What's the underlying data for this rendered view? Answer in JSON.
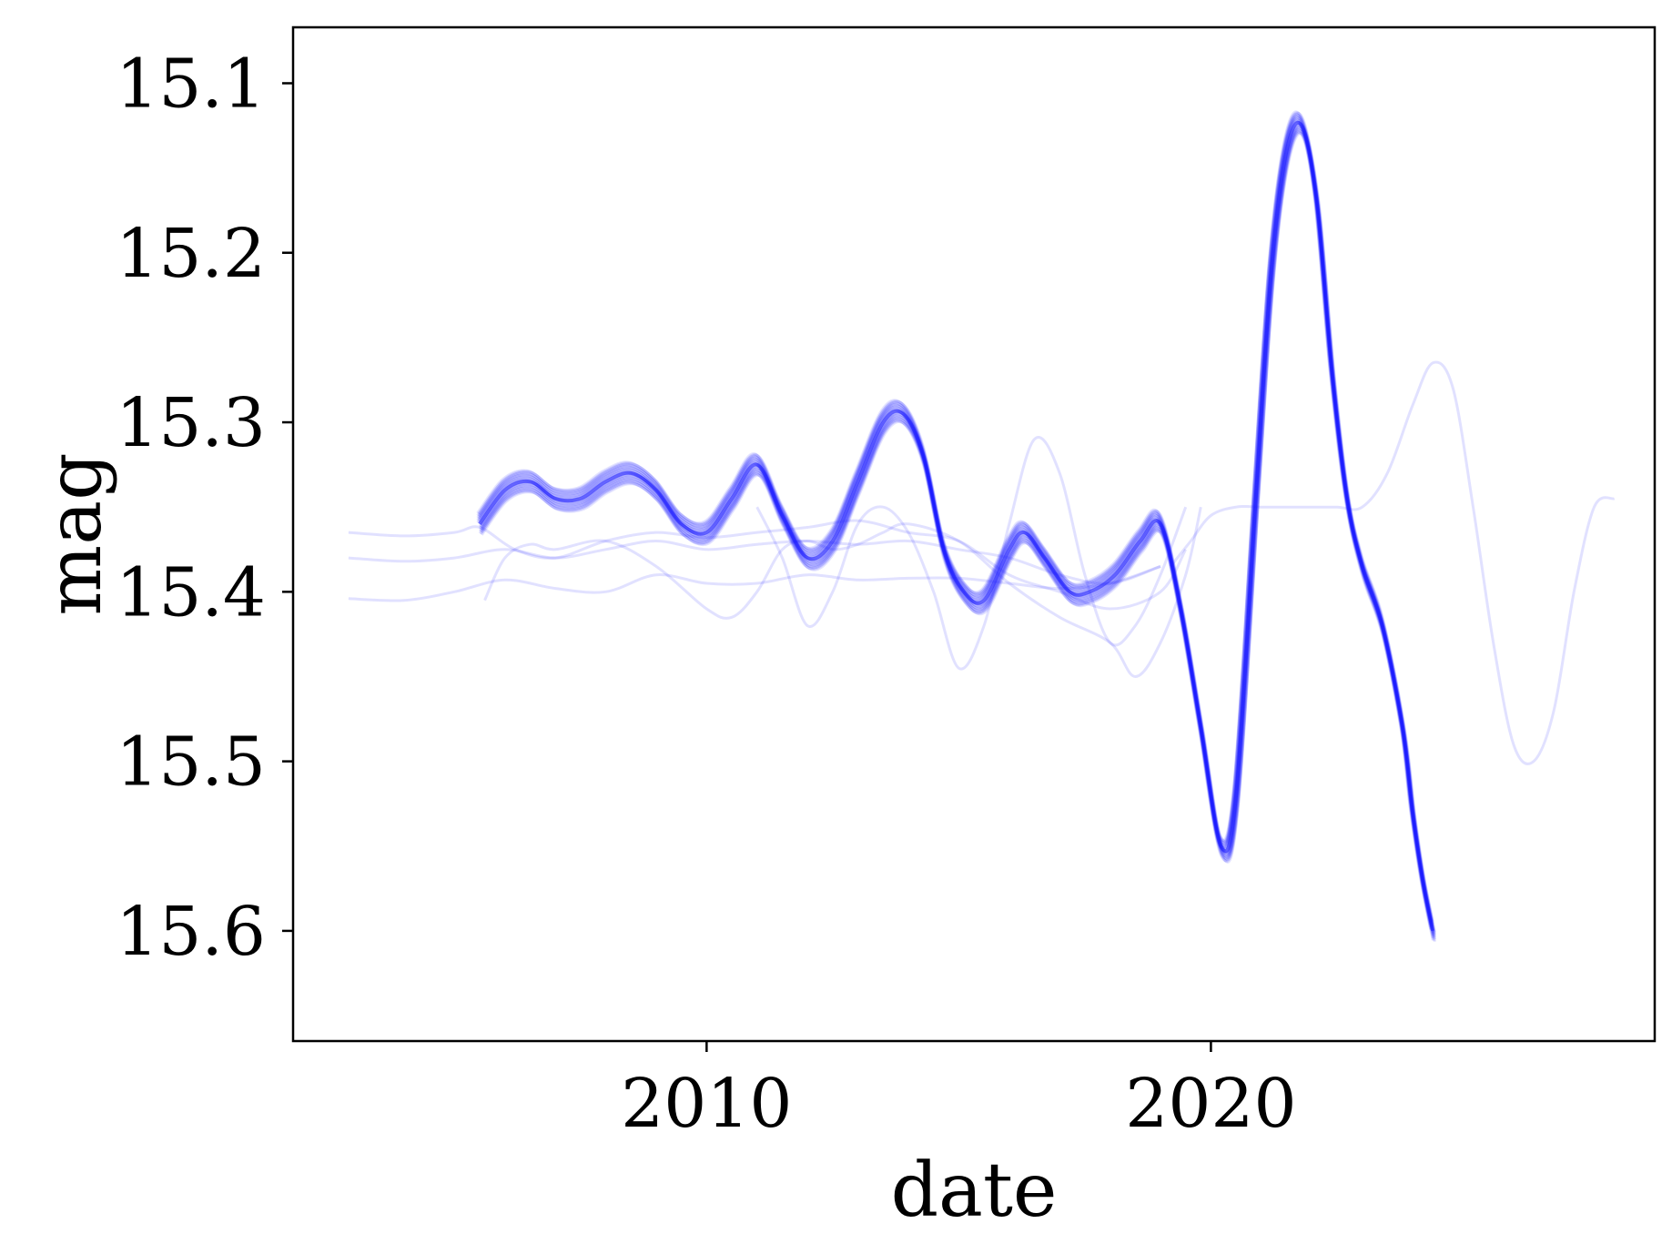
{
  "chart_data": {
    "type": "line",
    "title": "",
    "xlabel": "date",
    "ylabel": "mag",
    "xlim": [
      2001.8,
      2028.8
    ],
    "ylim": [
      15.665,
      15.067
    ],
    "y_inverted": true,
    "grid": false,
    "legend": "none",
    "line_color": "#1a1aff",
    "xticks": [
      {
        "value": 2010,
        "label": "2010"
      },
      {
        "value": 2020,
        "label": "2020"
      }
    ],
    "yticks": [
      {
        "value": 15.1,
        "label": "15.1"
      },
      {
        "value": 15.2,
        "label": "15.2"
      },
      {
        "value": 15.3,
        "label": "15.3"
      },
      {
        "value": 15.4,
        "label": "15.4"
      },
      {
        "value": 15.5,
        "label": "15.5"
      },
      {
        "value": 15.6,
        "label": "15.6"
      }
    ],
    "main_curve": {
      "x": [
        2005.5,
        2006.0,
        2006.5,
        2007.0,
        2007.5,
        2008.0,
        2008.5,
        2009.0,
        2009.5,
        2010.0,
        2010.5,
        2011.0,
        2011.5,
        2012.0,
        2012.5,
        2013.0,
        2013.5,
        2013.9,
        2014.3,
        2014.7,
        2015.1,
        2015.5,
        2016.0,
        2016.3,
        2016.7,
        2017.2,
        2017.6,
        2018.1,
        2018.6,
        2019.0,
        2019.4,
        2019.8,
        2020.2,
        2020.5,
        2020.9,
        2021.2,
        2021.5,
        2021.8,
        2022.1,
        2022.4,
        2022.7,
        2023.0,
        2023.4,
        2023.8,
        2024.0,
        2024.2,
        2024.4
      ],
      "y": [
        15.36,
        15.34,
        15.335,
        15.345,
        15.345,
        15.335,
        15.33,
        15.34,
        15.36,
        15.365,
        15.345,
        15.325,
        15.355,
        15.38,
        15.37,
        15.335,
        15.3,
        15.295,
        15.32,
        15.375,
        15.4,
        15.405,
        15.375,
        15.365,
        15.38,
        15.4,
        15.4,
        15.39,
        15.37,
        15.36,
        15.41,
        15.48,
        15.55,
        15.52,
        15.34,
        15.21,
        15.14,
        15.125,
        15.17,
        15.27,
        15.345,
        15.385,
        15.42,
        15.48,
        15.53,
        15.57,
        15.6
      ]
    },
    "offshoot_curves": [
      {
        "x": [
          2002.9,
          2004.0,
          2005.0,
          2005.5,
          2006.2,
          2007.0,
          2008.0,
          2009.0,
          2010.0,
          2011.0,
          2012.0,
          2013.0,
          2014.0,
          2015.0,
          2016.0,
          2017.0,
          2018.0,
          2019.0,
          2019.5
        ],
        "y": [
          15.365,
          15.367,
          15.365,
          15.362,
          15.375,
          15.38,
          15.37,
          15.365,
          15.368,
          15.365,
          15.362,
          15.358,
          15.365,
          15.37,
          15.39,
          15.4,
          15.41,
          15.4,
          15.375
        ]
      },
      {
        "x": [
          2002.9,
          2004.0,
          2005.0,
          2006.0,
          2007.0,
          2008.0,
          2009.0,
          2010.0,
          2011.0,
          2012.0,
          2013.0,
          2014.0,
          2015.0,
          2016.0,
          2017.0,
          2018.0,
          2019.0
        ],
        "y": [
          15.38,
          15.382,
          15.38,
          15.375,
          15.38,
          15.375,
          15.37,
          15.375,
          15.372,
          15.37,
          15.372,
          15.37,
          15.375,
          15.38,
          15.39,
          15.395,
          15.385
        ]
      },
      {
        "x": [
          2002.9,
          2004.0,
          2005.0,
          2006.0,
          2007.0,
          2008.0,
          2009.0,
          2010.0,
          2011.0,
          2012.0,
          2013.0,
          2014.0,
          2015.0,
          2016.0,
          2017.0,
          2018.0,
          2019.0
        ],
        "y": [
          15.404,
          15.405,
          15.4,
          15.393,
          15.398,
          15.4,
          15.39,
          15.395,
          15.395,
          15.39,
          15.393,
          15.392,
          15.392,
          15.395,
          15.398,
          15.395,
          15.385
        ]
      },
      {
        "x": [
          2005.6,
          2006.0,
          2006.5,
          2007.0,
          2008.0,
          2009.0,
          2010.0,
          2010.5,
          2011.0,
          2011.5,
          2012.0,
          2012.5,
          2013.0,
          2013.5,
          2014.0,
          2015.0,
          2016.0,
          2017.0,
          2018.0,
          2018.5,
          2019.0,
          2019.5,
          2019.8
        ],
        "y": [
          15.405,
          15.38,
          15.372,
          15.375,
          15.37,
          15.385,
          15.41,
          15.415,
          15.4,
          15.375,
          15.37,
          15.375,
          15.372,
          15.365,
          15.36,
          15.37,
          15.395,
          15.415,
          15.43,
          15.45,
          15.43,
          15.39,
          15.35
        ]
      },
      {
        "x": [
          2011.0,
          2011.5,
          2012.0,
          2012.5,
          2013.0,
          2013.5,
          2014.0,
          2014.5,
          2015.0,
          2015.5,
          2016.0,
          2016.5,
          2017.0,
          2017.5,
          2018.0,
          2018.5,
          2019.0,
          2019.5
        ],
        "y": [
          15.35,
          15.38,
          15.42,
          15.4,
          15.36,
          15.35,
          15.365,
          15.4,
          15.445,
          15.42,
          15.36,
          15.31,
          15.33,
          15.39,
          15.43,
          15.42,
          15.39,
          15.35
        ]
      },
      {
        "x": [
          2019.2,
          2019.6,
          2020.0,
          2020.5,
          2021.0,
          2021.5,
          2022.0,
          2022.5,
          2023.0,
          2023.5,
          2024.0,
          2024.4,
          2024.8,
          2025.2,
          2025.6,
          2026.0,
          2026.4,
          2026.8,
          2027.2,
          2027.6,
          2028.0
        ],
        "y": [
          15.385,
          15.37,
          15.355,
          15.35,
          15.35,
          15.35,
          15.35,
          15.35,
          15.35,
          15.33,
          15.29,
          15.265,
          15.28,
          15.35,
          15.43,
          15.49,
          15.5,
          15.47,
          15.4,
          15.35,
          15.345
        ]
      }
    ]
  }
}
